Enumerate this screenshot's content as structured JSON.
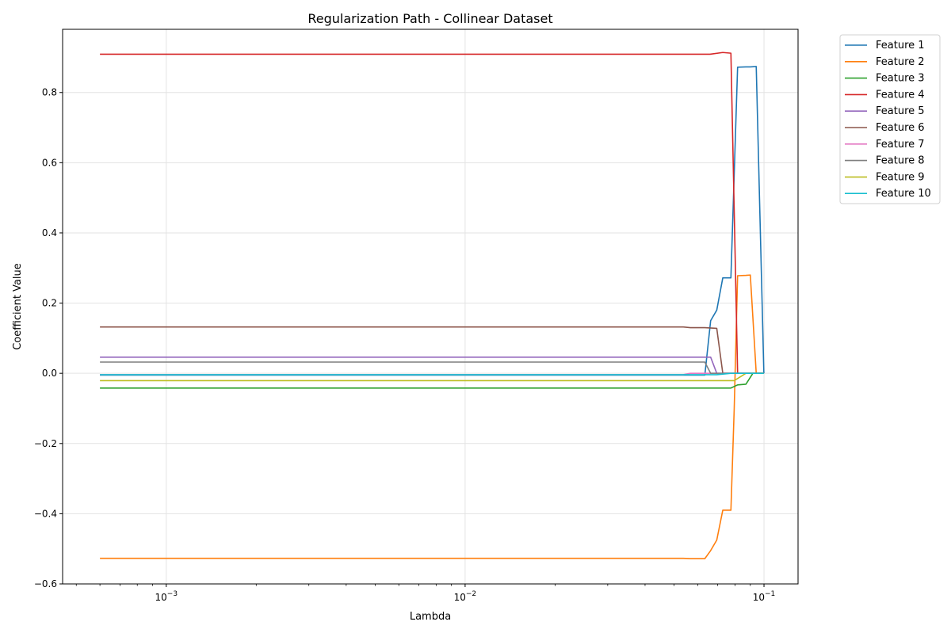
{
  "chart_data": {
    "type": "line",
    "title": "Regularization Path - Collinear Dataset",
    "xlabel": "Lambda",
    "ylabel": "Coefficient Value",
    "xscale": "log",
    "xlim": [
      0.00045,
      0.13
    ],
    "ylim": [
      -0.6,
      0.98
    ],
    "x_ticks": [
      {
        "value": 0.001,
        "label": "10−3"
      },
      {
        "value": 0.01,
        "label": "10−2"
      },
      {
        "value": 0.1,
        "label": "10−1"
      }
    ],
    "y_ticks": [
      {
        "value": -0.6,
        "label": "−0.6"
      },
      {
        "value": -0.4,
        "label": "−0.4"
      },
      {
        "value": -0.2,
        "label": "−0.2"
      },
      {
        "value": 0.0,
        "label": "0.0"
      },
      {
        "value": 0.2,
        "label": "0.2"
      },
      {
        "value": 0.4,
        "label": "0.4"
      },
      {
        "value": 0.6,
        "label": "0.6"
      },
      {
        "value": 0.8,
        "label": "0.8"
      }
    ],
    "grid": true,
    "legend_position": "outside-top-right",
    "series": [
      {
        "name": "Feature 1",
        "color": "#1f77b4",
        "points": [
          [
            0.0006,
            -0.005
          ],
          [
            0.0634,
            -0.005
          ],
          [
            0.0663,
            0.15
          ],
          [
            0.0695,
            0.18
          ],
          [
            0.0728,
            0.272
          ],
          [
            0.0775,
            0.272
          ],
          [
            0.0816,
            0.872
          ],
          [
            0.087,
            0.873
          ],
          [
            0.09,
            0.873
          ],
          [
            0.0942,
            0.874
          ],
          [
            0.0999,
            0.0
          ]
        ]
      },
      {
        "name": "Feature 2",
        "color": "#ff7f0e",
        "points": [
          [
            0.0006,
            -0.527
          ],
          [
            0.0537,
            -0.527
          ],
          [
            0.0567,
            -0.528
          ],
          [
            0.0634,
            -0.528
          ],
          [
            0.0663,
            -0.505
          ],
          [
            0.0695,
            -0.475
          ],
          [
            0.0728,
            -0.39
          ],
          [
            0.0775,
            -0.39
          ],
          [
            0.0795,
            -0.1
          ],
          [
            0.0816,
            0.278
          ],
          [
            0.087,
            0.279
          ],
          [
            0.09,
            0.28
          ],
          [
            0.0942,
            0.0
          ],
          [
            0.0999,
            0.0
          ]
        ]
      },
      {
        "name": "Feature 3",
        "color": "#2ca02c",
        "points": [
          [
            0.0006,
            -0.042
          ],
          [
            0.0775,
            -0.042
          ],
          [
            0.0816,
            -0.033
          ],
          [
            0.087,
            -0.031
          ],
          [
            0.0918,
            0.0
          ],
          [
            0.0999,
            0.0
          ]
        ]
      },
      {
        "name": "Feature 4",
        "color": "#d62728",
        "points": [
          [
            0.0006,
            0.909
          ],
          [
            0.066,
            0.909
          ],
          [
            0.0728,
            0.914
          ],
          [
            0.0775,
            0.912
          ],
          [
            0.0816,
            0.0
          ],
          [
            0.0999,
            0.0
          ]
        ]
      },
      {
        "name": "Feature 5",
        "color": "#9467bd",
        "points": [
          [
            0.0006,
            0.046
          ],
          [
            0.0663,
            0.046
          ],
          [
            0.0695,
            0.0
          ],
          [
            0.0999,
            0.0
          ]
        ]
      },
      {
        "name": "Feature 6",
        "color": "#8c564b",
        "points": [
          [
            0.0006,
            0.132
          ],
          [
            0.0537,
            0.132
          ],
          [
            0.0567,
            0.13
          ],
          [
            0.0634,
            0.13
          ],
          [
            0.0695,
            0.128
          ],
          [
            0.0728,
            0.0
          ],
          [
            0.0999,
            0.0
          ]
        ]
      },
      {
        "name": "Feature 7",
        "color": "#e377c2",
        "points": [
          [
            0.0006,
            -0.004
          ],
          [
            0.0537,
            -0.004
          ],
          [
            0.0567,
            0.0
          ],
          [
            0.0999,
            0.0
          ]
        ]
      },
      {
        "name": "Feature 8",
        "color": "#7f7f7f",
        "points": [
          [
            0.0006,
            0.032
          ],
          [
            0.0634,
            0.032
          ],
          [
            0.0663,
            0.0
          ],
          [
            0.0999,
            0.0
          ]
        ]
      },
      {
        "name": "Feature 9",
        "color": "#bcbd22",
        "points": [
          [
            0.0006,
            -0.021
          ],
          [
            0.0795,
            -0.021
          ],
          [
            0.087,
            0.0
          ],
          [
            0.0999,
            0.0
          ]
        ]
      },
      {
        "name": "Feature 10",
        "color": "#17becf",
        "points": [
          [
            0.0006,
            -0.004
          ],
          [
            0.0695,
            -0.004
          ],
          [
            0.0775,
            0.0
          ],
          [
            0.0999,
            0.0
          ]
        ]
      }
    ]
  }
}
